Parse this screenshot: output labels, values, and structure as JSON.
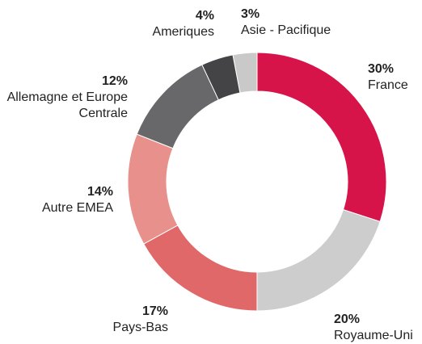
{
  "chart_data": {
    "type": "donut",
    "categories": [
      "France",
      "Royaume-Uni",
      "Pays-Bas",
      "Autre EMEA",
      "Allemagne et Europe Centrale",
      "Ameriques",
      "Asie - Pacifique"
    ],
    "values": [
      30,
      20,
      17,
      14,
      12,
      4,
      3
    ],
    "value_labels": [
      "30%",
      "20%",
      "17%",
      "14%",
      "12%",
      "4%",
      "3%"
    ],
    "colors": [
      "#d7144a",
      "#cdcdcd",
      "#e06868",
      "#e8918c",
      "#68686a",
      "#444446",
      "#c9c9c9"
    ]
  }
}
